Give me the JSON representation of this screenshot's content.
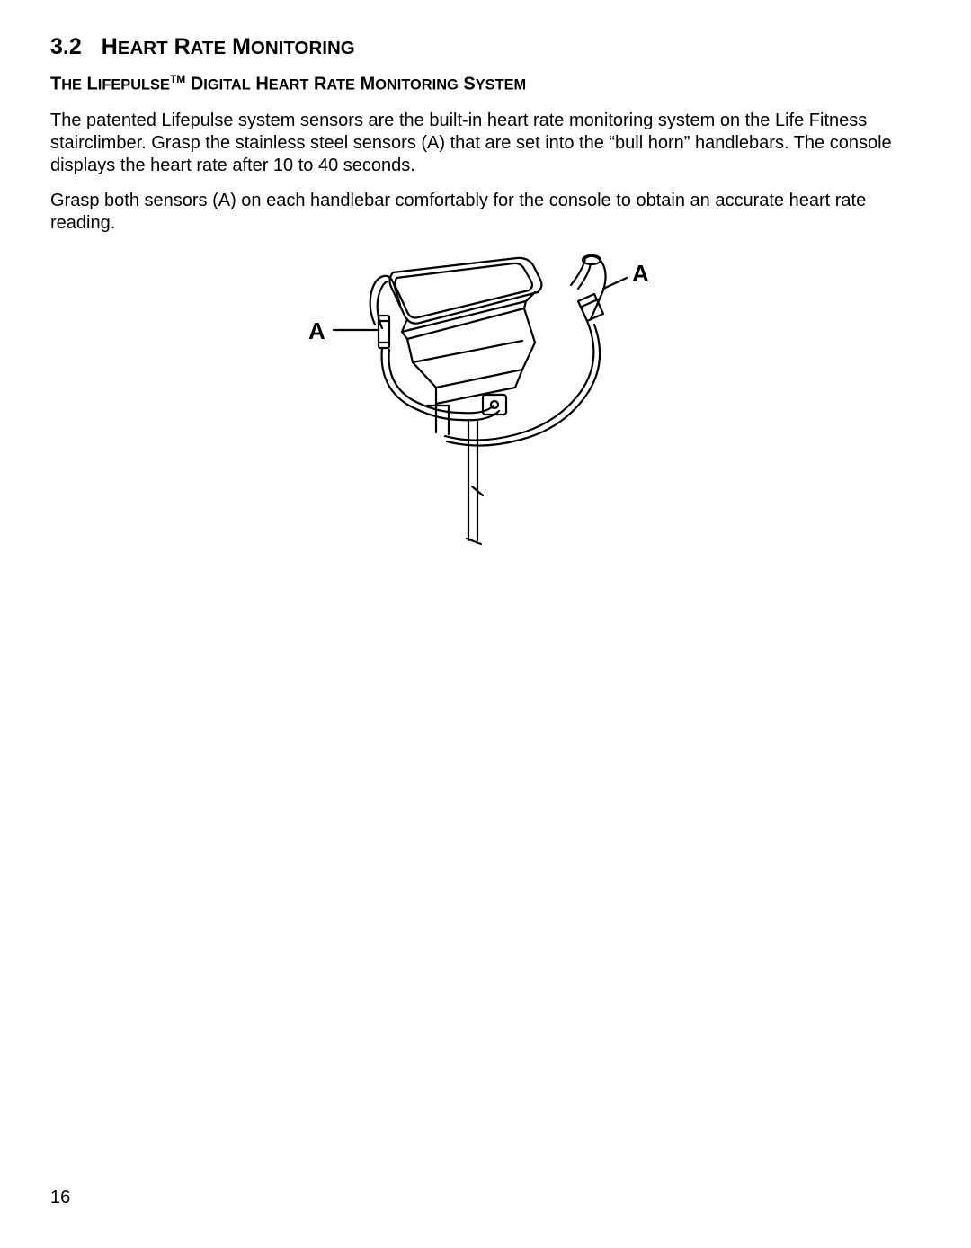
{
  "section": {
    "number": "3.2",
    "title_html": "H<span style='font-size:0.82em'>EART</span> R<span style='font-size:0.82em'>ATE</span> M<span style='font-size:0.82em'>ONITORING</span>"
  },
  "subheading_html": "T<span style='font-size:0.82em'>HE</span> L<span style='font-size:0.82em'>IFEPULSE</span><sup>TM</sup> D<span style='font-size:0.82em'>IGITAL</span> H<span style='font-size:0.82em'>EART</span> R<span style='font-size:0.82em'>ATE</span> M<span style='font-size:0.82em'>ONITORING</span> S<span style='font-size:0.82em'>YSTEM</span>",
  "paragraphs": [
    "The patented Lifepulse system sensors are the built-in heart rate monitoring system on the Life Fitness stairclimber. Grasp the stainless steel sensors (A) that are set into the “bull horn” handle­bars. The console displays the heart rate after 10 to 40 seconds.",
    "Grasp both sensors (A) on each handlebar comfortably for the console to obtain an accurate heart rate reading."
  ],
  "figure": {
    "labels": {
      "left": "A",
      "right": "A"
    },
    "stroke_color": "#000000",
    "stroke_width": 2.2,
    "label_fontsize": 26,
    "label_fontweight": "bold"
  },
  "page_number": "16"
}
